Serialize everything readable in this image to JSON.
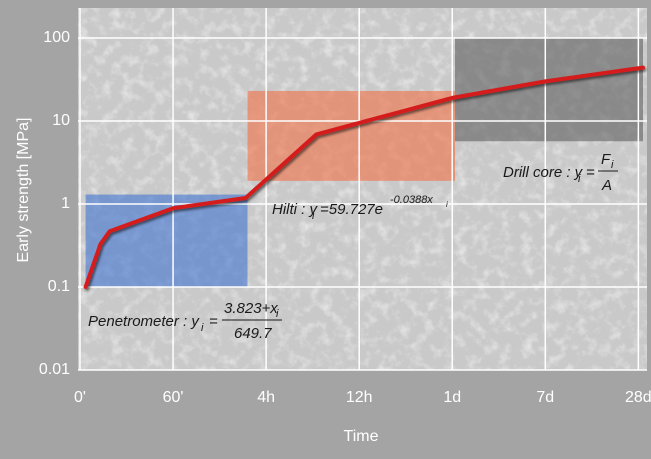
{
  "chart_data": {
    "type": "line",
    "y_label": "Early strength [MPa]",
    "x_label": "Time",
    "log_y": true,
    "grid": true,
    "xlim": [
      0,
      6.05
    ],
    "ylim": [
      0.01,
      200
    ],
    "xticks": [
      {
        "value": 0,
        "label": "0'"
      },
      {
        "value": 1,
        "label": "60'"
      },
      {
        "value": 2,
        "label": "4h"
      },
      {
        "value": 3,
        "label": "12h"
      },
      {
        "value": 4,
        "label": "1d"
      },
      {
        "value": 5,
        "label": "7d"
      },
      {
        "value": 6,
        "label": "28d"
      }
    ],
    "yticks": [
      0.01,
      0.1,
      1,
      10,
      100
    ],
    "series": [
      {
        "color": "#d51c1c",
        "x": [
          0.06,
          0.22,
          0.32,
          1.0,
          1.78,
          2.54,
          4.0,
          5.0,
          6.05
        ],
        "values": [
          0.1,
          0.33,
          0.47,
          0.89,
          1.18,
          6.9,
          19,
          30,
          44
        ]
      }
    ],
    "regions": [
      {
        "color": "rgba(70,120,210,0.62)",
        "x": [
          0.06,
          1.8
        ],
        "y": [
          0.1,
          1.3
        ]
      },
      {
        "color": "rgba(240,120,80,0.65)",
        "x": [
          1.8,
          4.03
        ],
        "y": [
          1.9,
          23
        ]
      },
      {
        "color": "rgba(95,95,95,0.6)",
        "x": [
          4.03,
          6.05
        ],
        "y": [
          5.7,
          100
        ]
      }
    ],
    "annotations": [
      {
        "parts": [
          "Penetrometer : y",
          "i",
          "=",
          "3.823+x",
          "i",
          "649.7"
        ]
      },
      {
        "parts": [
          "Hilti : y",
          "i",
          "=59.727e",
          "-0.0388x",
          "i"
        ]
      },
      {
        "parts": [
          "Drill core : y",
          "i",
          "=",
          "F",
          "i",
          "A"
        ]
      }
    ]
  }
}
